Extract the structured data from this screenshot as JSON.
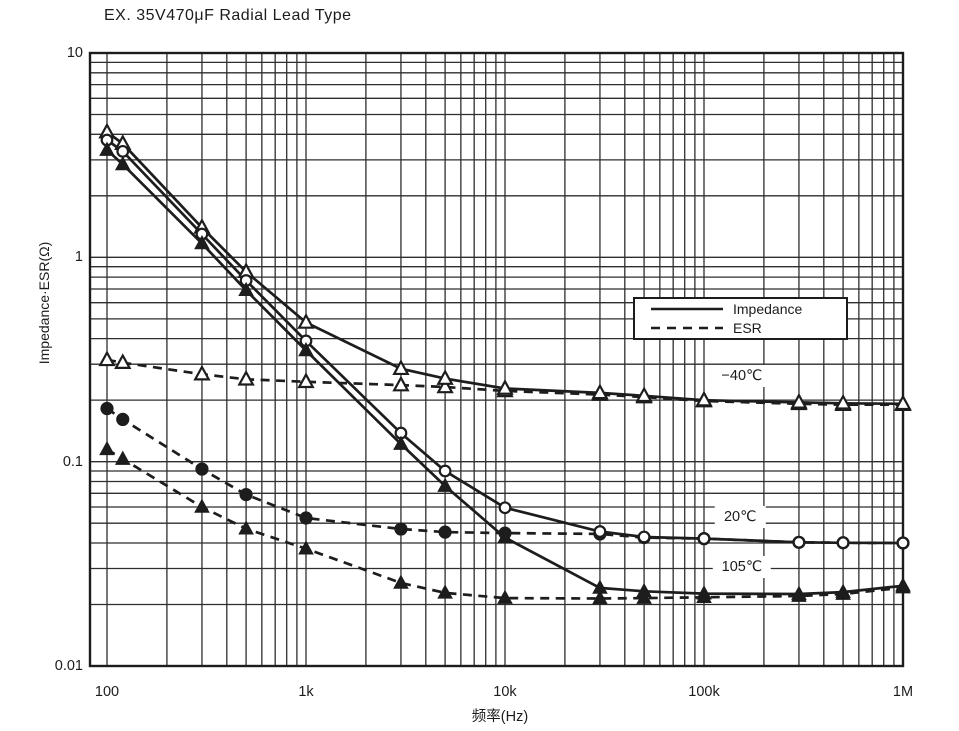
{
  "page": {
    "title": "EX. 35V470μF Radial Lead Type"
  },
  "chart_data": {
    "type": "line",
    "title": "EX. 35V470μF Radial Lead Type",
    "xlabel": "频率(Hz)",
    "ylabel": "Impedance·ESR(Ω)",
    "x_scale": "log",
    "y_scale": "log",
    "xlim": [
      100,
      1000000
    ],
    "ylim": [
      0.01,
      10
    ],
    "grid": "full log-log minor grid, black lines on white",
    "colors": {
      "line": "#1d1d1d",
      "grid": "#2e2e2e",
      "background": "#ffffff"
    },
    "x_ticks": [
      {
        "value": 100,
        "label": "100"
      },
      {
        "value": 1000,
        "label": "1k"
      },
      {
        "value": 10000,
        "label": "10k"
      },
      {
        "value": 100000,
        "label": "100k"
      },
      {
        "value": 1000000,
        "label": "1M"
      }
    ],
    "y_ticks": [
      {
        "value": 10,
        "label": "10"
      },
      {
        "value": 1,
        "label": "1"
      },
      {
        "value": 0.1,
        "label": "0.1"
      },
      {
        "value": 0.01,
        "label": "0.01"
      }
    ],
    "legend": {
      "position": "inside-upper-right",
      "entries": [
        {
          "label": "Impedance",
          "line": "solid"
        },
        {
          "label": "ESR",
          "line": "dashed"
        }
      ]
    },
    "curve_labels": [
      {
        "text": "−40℃",
        "f": 155000,
        "v": 0.264
      },
      {
        "text": "20℃",
        "f": 152000,
        "v": 0.0535
      },
      {
        "text": "105℃",
        "f": 155000,
        "v": 0.0305
      }
    ],
    "series": [
      {
        "name": "ESR −40℃",
        "temperature": "−40℃",
        "quantity": "ESR",
        "line": "dashed",
        "marker": "triangle-open",
        "points": [
          [
            100,
            0.315
          ],
          [
            120,
            0.305
          ],
          [
            300,
            0.268
          ],
          [
            500,
            0.253
          ],
          [
            1000,
            0.246
          ],
          [
            3000,
            0.237
          ],
          [
            5000,
            0.232
          ],
          [
            10000,
            0.222
          ],
          [
            30000,
            0.213
          ],
          [
            50000,
            0.207
          ],
          [
            100000,
            0.198
          ],
          [
            300000,
            0.192
          ],
          [
            500000,
            0.19
          ],
          [
            1000000,
            0.19
          ]
        ]
      },
      {
        "name": "ESR 20℃",
        "temperature": "20℃",
        "quantity": "ESR",
        "line": "dashed",
        "marker": "circle-filled",
        "points": [
          [
            100,
            0.182
          ],
          [
            120,
            0.161
          ],
          [
            300,
            0.092
          ],
          [
            500,
            0.069
          ],
          [
            1000,
            0.053
          ],
          [
            3000,
            0.0468
          ],
          [
            5000,
            0.0452
          ],
          [
            10000,
            0.0447
          ],
          [
            30000,
            0.0443
          ],
          [
            50000,
            0.0425
          ],
          [
            100000,
            0.042
          ],
          [
            300000,
            0.0403
          ],
          [
            500000,
            0.0401
          ],
          [
            1000000,
            0.04
          ]
        ]
      },
      {
        "name": "ESR 105℃",
        "temperature": "105℃",
        "quantity": "ESR",
        "line": "dashed",
        "marker": "triangle-filled",
        "points": [
          [
            100,
            0.115
          ],
          [
            120,
            0.103
          ],
          [
            300,
            0.06
          ],
          [
            500,
            0.047
          ],
          [
            1000,
            0.0375
          ],
          [
            3000,
            0.0255
          ],
          [
            5000,
            0.0228
          ],
          [
            10000,
            0.0215
          ],
          [
            30000,
            0.0214
          ],
          [
            50000,
            0.0215
          ],
          [
            100000,
            0.0217
          ],
          [
            300000,
            0.022
          ],
          [
            500000,
            0.0225
          ],
          [
            1000000,
            0.0242
          ]
        ]
      },
      {
        "name": "Impedance −40℃",
        "temperature": "−40℃",
        "quantity": "Impedance",
        "line": "solid",
        "marker": "triangle-open",
        "points": [
          [
            100,
            4.1
          ],
          [
            120,
            3.6
          ],
          [
            300,
            1.4
          ],
          [
            500,
            0.85
          ],
          [
            1000,
            0.48
          ],
          [
            3000,
            0.285
          ],
          [
            5000,
            0.255
          ],
          [
            10000,
            0.228
          ],
          [
            30000,
            0.217
          ],
          [
            50000,
            0.21
          ],
          [
            100000,
            0.2
          ],
          [
            300000,
            0.195
          ],
          [
            500000,
            0.193
          ],
          [
            1000000,
            0.192
          ]
        ]
      },
      {
        "name": "Impedance 20℃",
        "temperature": "20℃",
        "quantity": "Impedance",
        "line": "solid",
        "marker": "circle-open",
        "points": [
          [
            100,
            3.75
          ],
          [
            120,
            3.3
          ],
          [
            300,
            1.3
          ],
          [
            500,
            0.77
          ],
          [
            1000,
            0.39
          ],
          [
            3000,
            0.138
          ],
          [
            5000,
            0.09
          ],
          [
            10000,
            0.0595
          ],
          [
            30000,
            0.0455
          ],
          [
            50000,
            0.0428
          ],
          [
            100000,
            0.042
          ],
          [
            300000,
            0.0403
          ],
          [
            500000,
            0.0401
          ],
          [
            1000000,
            0.04
          ]
        ]
      },
      {
        "name": "Impedance 105℃",
        "temperature": "105℃",
        "quantity": "Impedance",
        "line": "solid",
        "marker": "triangle-filled",
        "points": [
          [
            100,
            3.35
          ],
          [
            120,
            2.85
          ],
          [
            300,
            1.17
          ],
          [
            500,
            0.69
          ],
          [
            1000,
            0.35
          ],
          [
            3000,
            0.122
          ],
          [
            5000,
            0.076
          ],
          [
            10000,
            0.0425
          ],
          [
            30000,
            0.0241
          ],
          [
            50000,
            0.0232
          ],
          [
            100000,
            0.0226
          ],
          [
            300000,
            0.0225
          ],
          [
            500000,
            0.023
          ],
          [
            1000000,
            0.0247
          ]
        ]
      }
    ]
  }
}
